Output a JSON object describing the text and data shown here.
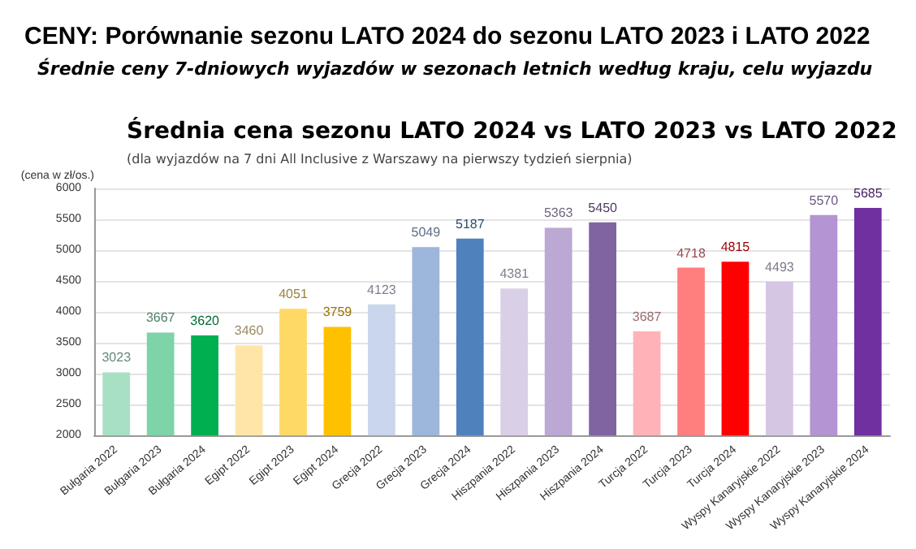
{
  "chart_data": {
    "type": "bar",
    "title": "CENY: Porównanie sezonu LATO 2024 do sezonu LATO 2023 i LATO 2022",
    "subtitle": "Średnie ceny 7-dniowych wyjazdów w sezonach letnich według kraju, celu wyjazdu",
    "annotations": [
      "Średnia cena sezonu LATO 2024 vs LATO 2023 vs LATO 2022",
      "(dla wyjazdów na 7 dni All Inclusive z Warszawy na pierwszy tydzień sierpnia)"
    ],
    "ylabel": "(cena w zł/os.)",
    "categories": [
      "Bułgaria 2022",
      "Bułgaria 2023",
      "Bułgaria 2024",
      "Egipt 2022",
      "Egipt 2023",
      "Egipt 2024",
      "Grecja 2022",
      "Grecja 2023",
      "Grecja 2024",
      "Hiszpania 2022",
      "Hiszpania 2023",
      "Hiszpania 2024",
      "Turcja 2022",
      "Turcja 2023",
      "Turcja 2024",
      "Wyspy Kanaryjskie 2022",
      "Wyspy Kanaryjskie 2023",
      "Wyspy Kanaryjskie 2024"
    ],
    "values": [
      3023,
      3667,
      3620,
      3460,
      4051,
      3759,
      4123,
      5049,
      5187,
      4381,
      5363,
      5450,
      3687,
      4718,
      4815,
      4493,
      5570,
      5685
    ],
    "colors": [
      "#a8e0c4",
      "#7fd3a8",
      "#00b050",
      "#ffe6a8",
      "#ffd966",
      "#ffc000",
      "#c9d6ec",
      "#9db6dc",
      "#4f81bd",
      "#d9cfe6",
      "#bba8d3",
      "#8064a2",
      "#ffb3b8",
      "#ff7f7f",
      "#ff0000",
      "#d5c6e4",
      "#b494d3",
      "#7030a0"
    ],
    "ylim": [
      2000,
      6000
    ],
    "yticks": [
      2000,
      2500,
      3000,
      3500,
      4000,
      4500,
      5000,
      5500,
      6000
    ],
    "grid": "y",
    "data_labels": true
  }
}
